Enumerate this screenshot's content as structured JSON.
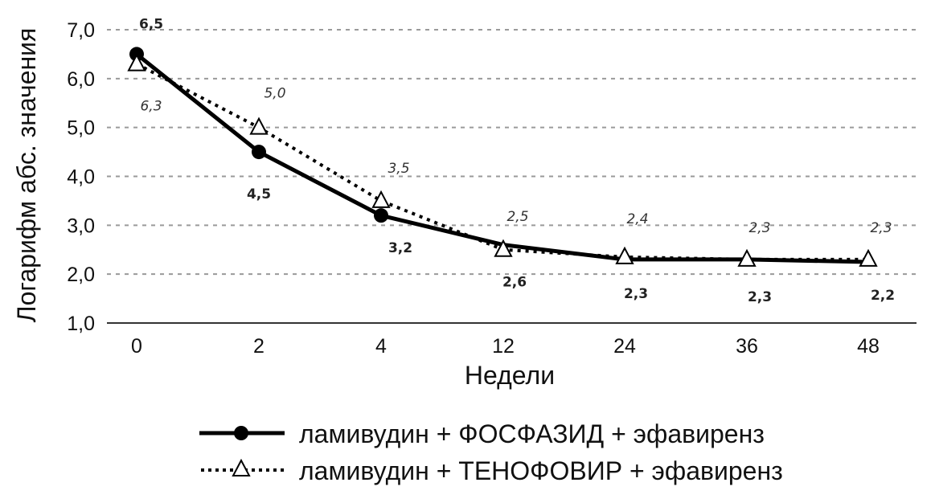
{
  "chart_data": {
    "type": "line",
    "categories": [
      "0",
      "2",
      "4",
      "12",
      "24",
      "36",
      "48"
    ],
    "xlabel": "Недели",
    "ylabel": "Логарифм абс. значения",
    "ylim": [
      1.0,
      7.0
    ],
    "y_ticks": [
      "1,0",
      "2,0",
      "3,0",
      "4,0",
      "5,0",
      "6,0",
      "7,0"
    ],
    "grid": "horizontal dashed",
    "legend_position": "bottom",
    "series": [
      {
        "name": "ламивудин + ФОСФАЗИД + эфавиренз",
        "values": [
          6.5,
          4.5,
          3.2,
          2.6,
          2.3,
          2.3,
          2.25
        ],
        "labels": [
          "6,5",
          "4,5",
          "3,2",
          "2,6",
          "2,3",
          "2,3",
          "2,2"
        ],
        "style": "solid",
        "marker": "filled-circle",
        "color": "#000000"
      },
      {
        "name": "ламивудин + ТЕНОФОВИР + эфавиренз",
        "values": [
          6.3,
          5.0,
          3.5,
          2.5,
          2.35,
          2.3,
          2.3
        ],
        "labels": [
          "6,3",
          "5,0",
          "3,5",
          "2,5",
          "2,4",
          "2,3",
          "2,3"
        ],
        "style": "dotted",
        "marker": "open-triangle",
        "color": "#000000"
      }
    ]
  }
}
